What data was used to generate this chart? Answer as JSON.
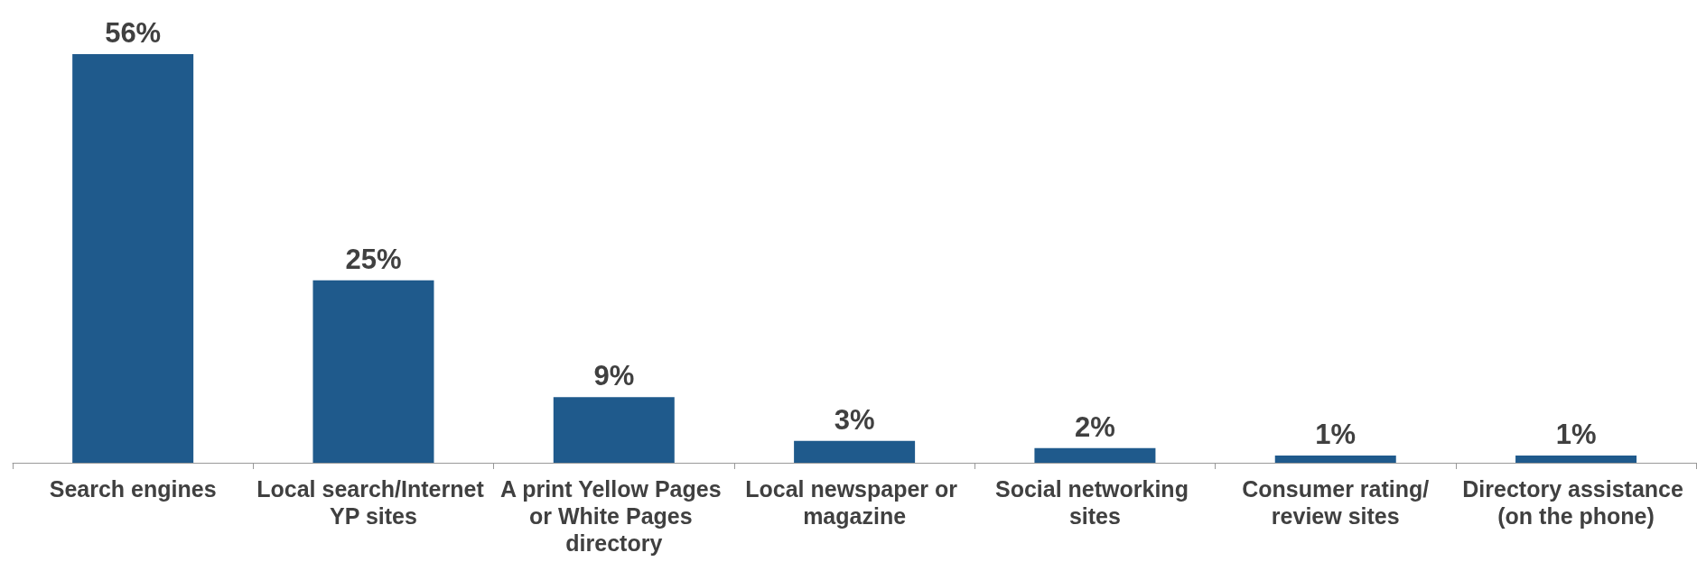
{
  "chart_data": {
    "type": "bar",
    "categories": [
      "Search engines",
      "Local search/Internet YP sites",
      "A print Yellow Pages or White Pages directory",
      "Local newspaper or magazine",
      "Social networking sites",
      "Consumer rating/review sites",
      "Directory assistance (on the phone)"
    ],
    "values": [
      56,
      25,
      9,
      3,
      2,
      1,
      1
    ],
    "color": "#1f5a8c",
    "value_labels": [
      "56%",
      "25%",
      "9%",
      "3%",
      "2%",
      "1%",
      "1%"
    ]
  }
}
